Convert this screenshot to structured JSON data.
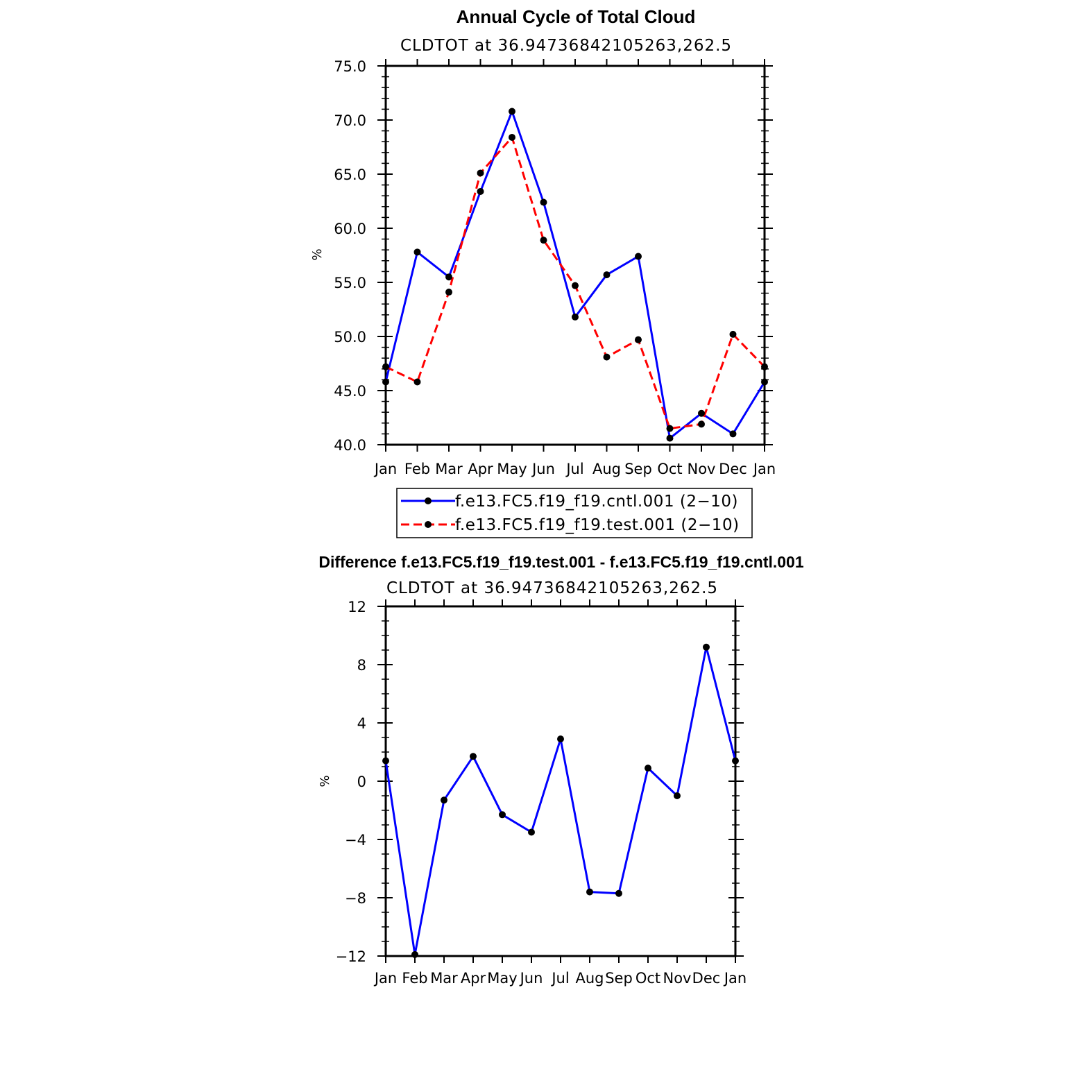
{
  "chart_data": [
    {
      "type": "line",
      "title": "Annual Cycle of Total Cloud",
      "subtitle": "CLDTOT at 36.94736842105263,262.5",
      "ylabel": "%",
      "categories": [
        "Jan",
        "Feb",
        "Mar",
        "Apr",
        "May",
        "Jun",
        "Jul",
        "Aug",
        "Sep",
        "Oct",
        "Nov",
        "Dec",
        "Jan"
      ],
      "ylim": [
        40,
        75
      ],
      "yticks": [
        "40.0",
        "45.0",
        "50.0",
        "55.0",
        "60.0",
        "65.0",
        "70.0",
        "75.0"
      ],
      "series": [
        {
          "name": "f.e13.FC5.f19_f19.cntl.001 (2−10)",
          "color": "#0000ff",
          "dash": "solid",
          "values": [
            45.8,
            57.8,
            55.5,
            63.4,
            70.8,
            62.4,
            51.8,
            55.7,
            57.4,
            40.6,
            42.9,
            41.0,
            45.8
          ]
        },
        {
          "name": "f.e13.FC5.f19_f19.test.001 (2−10)",
          "color": "#ff0000",
          "dash": "dashed",
          "values": [
            47.2,
            45.8,
            54.1,
            65.1,
            68.4,
            58.9,
            54.7,
            48.1,
            49.7,
            41.5,
            41.9,
            50.2,
            47.2
          ]
        }
      ]
    },
    {
      "type": "line",
      "title": "Difference f.e13.FC5.f19_f19.test.001 - f.e13.FC5.f19_f19.cntl.001",
      "subtitle": "CLDTOT at 36.94736842105263,262.5",
      "ylabel": "%",
      "categories": [
        "Jan",
        "Feb",
        "Mar",
        "Apr",
        "May",
        "Jun",
        "Jul",
        "Aug",
        "Sep",
        "Oct",
        "Nov",
        "Dec",
        "Jan"
      ],
      "ylim": [
        -12,
        12
      ],
      "yticks": [
        "−12",
        "−8",
        "−4",
        "0",
        "4",
        "8",
        "12"
      ],
      "series": [
        {
          "color": "#0000ff",
          "dash": "solid",
          "values": [
            1.4,
            -11.9,
            -1.3,
            1.7,
            -2.3,
            -3.5,
            2.9,
            -7.6,
            -7.7,
            0.9,
            -1.0,
            9.2,
            1.4
          ]
        }
      ]
    }
  ]
}
